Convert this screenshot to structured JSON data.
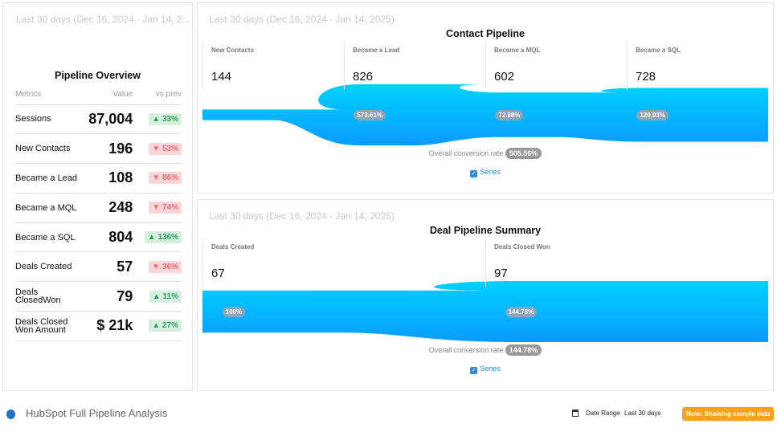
{
  "date_range_label": "Last 30 days (Dec 16, 2024 - Jan 14, 2025)",
  "overview": {
    "range_label": "Last 30 days (Dec 16, 2024 - Jan 14, 2...",
    "title": "Pipeline Overview",
    "headers": [
      "Metrics",
      "Value",
      "vs prev"
    ],
    "rows": [
      {
        "metric": "Sessions",
        "value": "87,004",
        "change": "▲ 33%",
        "dir": "up"
      },
      {
        "metric": "New Contacts",
        "value": "196",
        "change": "▼ 53%",
        "dir": "down"
      },
      {
        "metric": "Became a Lead",
        "value": "108",
        "change": "▼ 86%",
        "dir": "down"
      },
      {
        "metric": "Became a MQL",
        "value": "248",
        "change": "▼ 74%",
        "dir": "down"
      },
      {
        "metric": "Became a SQL",
        "value": "804",
        "change": "▲ 136%",
        "dir": "up"
      },
      {
        "metric": "Deals Created",
        "value": "57",
        "change": "▼ 36%",
        "dir": "down"
      },
      {
        "metric": "Deals ClosedWon",
        "value": "79",
        "change": "▲ 11%",
        "dir": "up"
      },
      {
        "metric": "Deals Closed Won Amount",
        "value": "$ 21k",
        "change": "▲ 27%",
        "dir": "up"
      }
    ]
  },
  "contact": {
    "title": "Contact Pipeline",
    "stages": [
      {
        "label": "New Contacts",
        "value": 144,
        "pct": ""
      },
      {
        "label": "Became a Lead",
        "value": 826,
        "pct": "573.61%"
      },
      {
        "label": "Became a MQL",
        "value": 602,
        "pct": "72.88%"
      },
      {
        "label": "Became a SQL",
        "value": 728,
        "pct": "120.93%"
      }
    ],
    "conversion_label": "Overall conversion rate",
    "conversion": "505.56%",
    "legend": "Series"
  },
  "deal": {
    "title": "Deal Pipeline Summary",
    "stages": [
      {
        "label": "Deals Created",
        "value": 67,
        "pct": "100%"
      },
      {
        "label": "Deals Closed Won",
        "value": 97,
        "pct": "144.78%"
      }
    ],
    "conversion_label": "Overall conversion rate",
    "conversion": "144.78%",
    "legend": "Series"
  },
  "footer": {
    "title": "HubSpot Full Pipeline Analysis",
    "date_range_label": "Date Range",
    "date_range_value": "Last 30 days",
    "note": "Note: Showing sample data"
  },
  "colors": {
    "funnel_top": "#00d2ff",
    "funnel_bottom": "#0a9bff",
    "note_bg": "#f7a21b"
  }
}
